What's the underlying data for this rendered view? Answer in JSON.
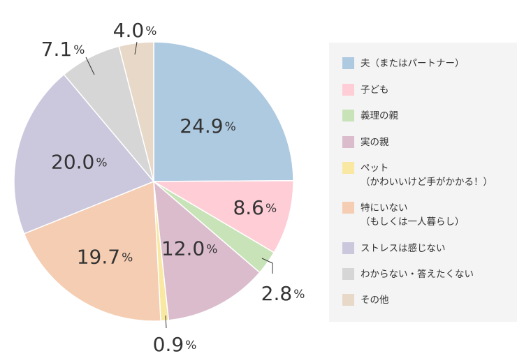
{
  "chart_data": {
    "type": "pie",
    "start": "top",
    "direction": "clockwise",
    "unit": "%",
    "slices": [
      {
        "label": "夫（またはパートナー）",
        "value": 24.9,
        "display": "24.9",
        "color": "#aecae1"
      },
      {
        "label": "子ども",
        "value": 8.6,
        "display": "8.6",
        "color": "#fecdd6"
      },
      {
        "label": "義理の親",
        "value": 2.8,
        "display": "2.8",
        "color": "#c8e3b8"
      },
      {
        "label": "実の親",
        "value": 12.0,
        "display": "12.0",
        "color": "#dbbccd"
      },
      {
        "label": "ペット\n（かわいいけど手がかかる！）",
        "value": 0.9,
        "display": "0.9",
        "color": "#f8e8a1"
      },
      {
        "label": "特にいない\n（もしくは一人暮らし）",
        "value": 19.7,
        "display": "19.7",
        "color": "#f4cdb2"
      },
      {
        "label": "ストレスは感じない",
        "value": 20.0,
        "display": "20.0",
        "color": "#cbc8de"
      },
      {
        "label": "わからない・答えたくない",
        "value": 7.1,
        "display": "7.1",
        "color": "#d6d6d6"
      },
      {
        "label": "その他",
        "value": 4.0,
        "display": "4.0",
        "color": "#e8d8c7"
      }
    ]
  }
}
